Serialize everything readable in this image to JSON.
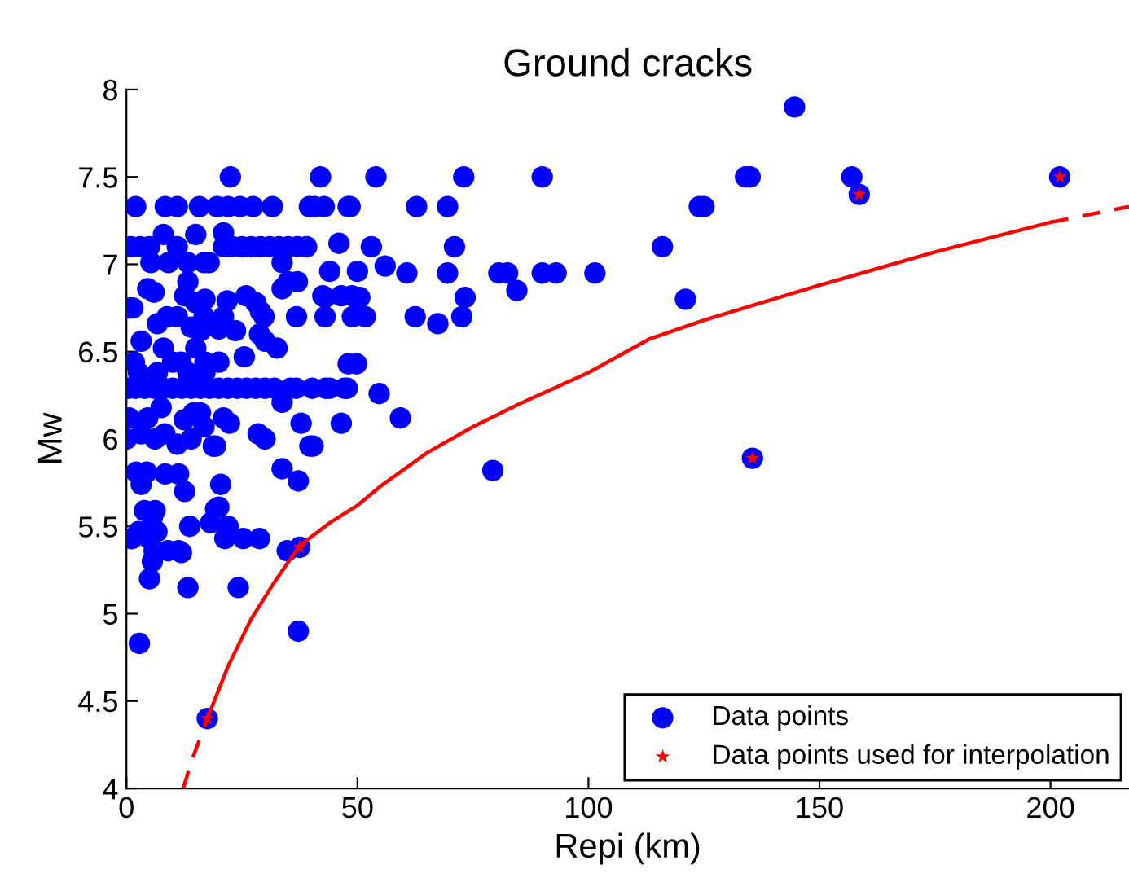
{
  "chart_data": {
    "type": "scatter",
    "title": "Ground cracks",
    "xlabel": "Repi (km)",
    "ylabel": "Mw",
    "xlim": [
      0,
      217
    ],
    "xticks": [
      0,
      50,
      100,
      150,
      200
    ],
    "ylim": [
      4,
      8
    ],
    "yticks": [
      4,
      4.5,
      5,
      5.5,
      6,
      6.5,
      7,
      7.5,
      8
    ],
    "grid": false,
    "legend": "bottom right",
    "series": [
      {
        "name": "Data points",
        "marker": "circle",
        "color": "#0000ff",
        "x": [
          22.5,
          42,
          54,
          73,
          90,
          134,
          135,
          157,
          202,
          144.6,
          158.6,
          124,
          125,
          116,
          121,
          135.5,
          2,
          8.4,
          11,
          15.8,
          19.6,
          22,
          24.6,
          27.4,
          31.6,
          39.6,
          40.7,
          42.8,
          48.4,
          48,
          62.8,
          69.5,
          1,
          3,
          5,
          11,
          21,
          23,
          25,
          27,
          29,
          31,
          33,
          35,
          37,
          39,
          8,
          15,
          21,
          46,
          53,
          71,
          5.3,
          9.1,
          13.3,
          16.8,
          17.9,
          33.7,
          44,
          50,
          60.7,
          69.5,
          80.6,
          82.5,
          90,
          93,
          101.4,
          56,
          84.5,
          4.6,
          6,
          13.3,
          33.7,
          35,
          37,
          12.6,
          15,
          17,
          21.8,
          25.9,
          42.5,
          46.5,
          48.8,
          43,
          50.5,
          73.3,
          0.6,
          1.4,
          28,
          29,
          8.8,
          11,
          16.8,
          21,
          29.8,
          36.8,
          43,
          48.9,
          51.7,
          62.5,
          72.6,
          67.4,
          6.7,
          14,
          20,
          28.8,
          16.1,
          23.6,
          3.2,
          8,
          30,
          32.6,
          48,
          1.7,
          10,
          11.8,
          15,
          17,
          20,
          25.5,
          49.8,
          2.6,
          6.7,
          13.3,
          17,
          0.5,
          2,
          4,
          6,
          8,
          10,
          12,
          14,
          16,
          18,
          20,
          22,
          24,
          26,
          28,
          30,
          32,
          35.5,
          36.7,
          40.2,
          43.1,
          47.2,
          44,
          47.8,
          54.7,
          46.5,
          59.3,
          79.3,
          0.6,
          4.6,
          7.5,
          12.5,
          14.5,
          16,
          21,
          22.3,
          16.8,
          3.2,
          6.2,
          11,
          14,
          18.8,
          28.5,
          37.8,
          39.7,
          33.7,
          8.3,
          0,
          19.3,
          30,
          40.4,
          2.1,
          4.4,
          8.4,
          11.3,
          3.2,
          12.6,
          20.4,
          33.7,
          37.2,
          3.9,
          6.2,
          5.6,
          13.7,
          19.3,
          20,
          18.2,
          22,
          1.2,
          4.9,
          2.6,
          6.6,
          21.3,
          25.3,
          28.8,
          6,
          9,
          11.3,
          11.9,
          34.8,
          37.5,
          5.6,
          5,
          13.3,
          24.2,
          2.8,
          37.2,
          17.5
        ],
        "values": [
          7.5,
          7.5,
          7.5,
          7.5,
          7.5,
          7.5,
          7.5,
          7.5,
          7.5,
          7.9,
          7.4,
          7.33,
          7.33,
          7.1,
          6.8,
          5.89,
          7.33,
          7.33,
          7.33,
          7.33,
          7.33,
          7.33,
          7.33,
          7.33,
          7.33,
          7.33,
          7.33,
          7.33,
          7.33,
          7.33,
          7.33,
          7.33,
          7.1,
          7.1,
          7.1,
          7.1,
          7.1,
          7.1,
          7.1,
          7.1,
          7.1,
          7.1,
          7.1,
          7.1,
          7.1,
          7.1,
          7.17,
          7.17,
          7.18,
          7.12,
          7.1,
          7.1,
          7.01,
          7.01,
          7.01,
          7.01,
          7.01,
          7.01,
          6.96,
          6.96,
          6.95,
          6.95,
          6.95,
          6.95,
          6.95,
          6.95,
          6.95,
          6.99,
          6.85,
          6.86,
          6.84,
          6.9,
          6.86,
          6.9,
          6.9,
          6.82,
          6.78,
          6.8,
          6.79,
          6.82,
          6.82,
          6.82,
          6.82,
          6.81,
          6.81,
          6.81,
          6.75,
          6.75,
          6.78,
          6.73,
          6.7,
          6.7,
          6.7,
          6.7,
          6.7,
          6.7,
          6.7,
          6.7,
          6.7,
          6.7,
          6.7,
          6.66,
          6.66,
          6.64,
          6.63,
          6.6,
          6.62,
          6.62,
          6.56,
          6.52,
          6.56,
          6.52,
          6.43,
          6.44,
          6.44,
          6.44,
          6.52,
          6.44,
          6.44,
          6.47,
          6.43,
          6.38,
          6.38,
          6.38,
          6.38,
          6.29,
          6.29,
          6.29,
          6.29,
          6.29,
          6.29,
          6.29,
          6.29,
          6.29,
          6.29,
          6.29,
          6.29,
          6.29,
          6.29,
          6.29,
          6.29,
          6.29,
          6.29,
          6.29,
          6.29,
          6.29,
          6.29,
          6.29,
          6.29,
          6.26,
          6.09,
          6.12,
          5.82,
          6.12,
          6.12,
          6.18,
          6.11,
          6.15,
          6.15,
          6.12,
          6.09,
          6.07,
          6.03,
          6.0,
          5.97,
          6.0,
          5.96,
          6.03,
          6.09,
          5.96,
          6.21,
          6.03,
          6.0,
          5.96,
          6.0,
          5.96,
          5.81,
          5.81,
          5.8,
          5.8,
          5.74,
          5.7,
          5.74,
          5.83,
          5.76,
          5.59,
          5.59,
          5.55,
          5.5,
          5.6,
          5.61,
          5.52,
          5.5,
          5.43,
          5.43,
          5.47,
          5.47,
          5.43,
          5.43,
          5.43,
          5.36,
          5.36,
          5.36,
          5.35,
          5.36,
          5.38,
          5.3,
          5.2,
          5.15,
          5.15,
          4.83,
          4.9,
          4.4
        ]
      },
      {
        "name": "Data points used for interpolation",
        "marker": "star",
        "color": "#ff0000",
        "x": [
          17.5,
          37.5,
          135.5,
          158.6,
          202
        ],
        "values": [
          4.4,
          5.38,
          5.89,
          7.4,
          7.5
        ]
      },
      {
        "type": "line",
        "line_style": "dashed",
        "color": "#ff0000",
        "x": [
          12.3,
          14,
          17.5
        ],
        "values": [
          4.0,
          4.15,
          4.4
        ]
      },
      {
        "type": "line",
        "line_style": "solid",
        "color": "#ff0000",
        "x": [
          17.5,
          22,
          27,
          32,
          37.5,
          44,
          50,
          55,
          65,
          75,
          85,
          100,
          113,
          125,
          150,
          175,
          200
        ],
        "values": [
          4.4,
          4.7,
          4.97,
          5.18,
          5.39,
          5.52,
          5.62,
          5.73,
          5.92,
          6.07,
          6.2,
          6.38,
          6.57,
          6.68,
          6.88,
          7.07,
          7.24
        ]
      },
      {
        "type": "line",
        "line_style": "dashed",
        "color": "#ff0000",
        "x": [
          200,
          217
        ],
        "values": [
          7.24,
          7.33
        ]
      }
    ]
  }
}
